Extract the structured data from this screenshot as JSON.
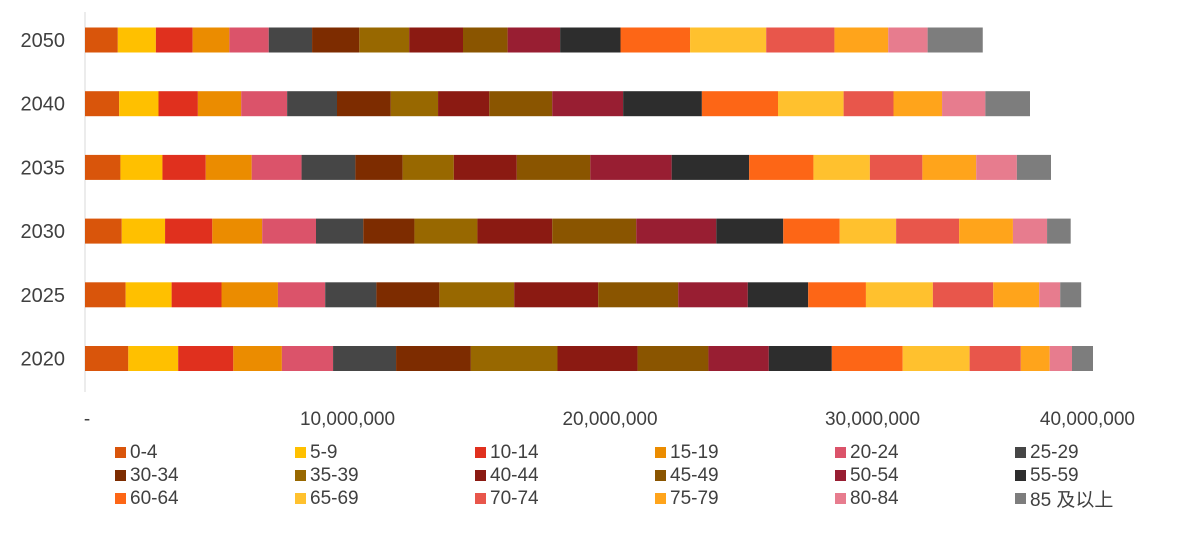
{
  "chart_data": {
    "type": "bar",
    "orientation": "horizontal",
    "stacked": true,
    "categories": [
      "2050",
      "2040",
      "2035",
      "2030",
      "2025",
      "2020"
    ],
    "x_ticks": [
      "-",
      "10,000,000",
      "20,000,000",
      "30,000,000",
      "40,000,000"
    ],
    "xlim": [
      0,
      40000000
    ],
    "grid": false,
    "legend_position": "bottom",
    "series": [
      {
        "name": "0-4",
        "color": "#d9550b",
        "values": [
          1250000,
          1300000,
          1350000,
          1400000,
          1550000,
          1650000
        ]
      },
      {
        "name": "5-9",
        "color": "#ffc000",
        "values": [
          1450000,
          1500000,
          1600000,
          1650000,
          1750000,
          1900000
        ]
      },
      {
        "name": "10-14",
        "color": "#e0301e",
        "values": [
          1400000,
          1500000,
          1650000,
          1800000,
          1900000,
          2100000
        ]
      },
      {
        "name": "15-19",
        "color": "#eb8c00",
        "values": [
          1400000,
          1650000,
          1750000,
          1900000,
          2150000,
          1850000
        ]
      },
      {
        "name": "20-24",
        "color": "#db536a",
        "values": [
          1500000,
          1750000,
          1900000,
          2050000,
          1800000,
          1950000
        ]
      },
      {
        "name": "25-29",
        "color": "#464646",
        "values": [
          1650000,
          1900000,
          2050000,
          1800000,
          1950000,
          2400000
        ]
      },
      {
        "name": "30-34",
        "color": "#7d2c00",
        "values": [
          1800000,
          2050000,
          1800000,
          1950000,
          2400000,
          2850000
        ]
      },
      {
        "name": "35-39",
        "color": "#986800",
        "values": [
          1900000,
          1800000,
          1950000,
          2400000,
          2850000,
          3300000
        ]
      },
      {
        "name": "40-44",
        "color": "#8b1a12",
        "values": [
          2050000,
          1950000,
          2400000,
          2850000,
          3200000,
          3050000
        ]
      },
      {
        "name": "45-49",
        "color": "#8a5500",
        "values": [
          1700000,
          2400000,
          2800000,
          3200000,
          3050000,
          2700000
        ]
      },
      {
        "name": "50-54",
        "color": "#981e32",
        "values": [
          2000000,
          2700000,
          3100000,
          3050000,
          2650000,
          2300000
        ]
      },
      {
        "name": "55-59",
        "color": "#2d2d2d",
        "values": [
          2300000,
          3000000,
          2950000,
          2550000,
          2300000,
          2400000
        ]
      },
      {
        "name": "60-64",
        "color": "#fd6616",
        "values": [
          2650000,
          2900000,
          2450000,
          2150000,
          2200000,
          2700000
        ]
      },
      {
        "name": "65-69",
        "color": "#ffc12e",
        "values": [
          2900000,
          2500000,
          2150000,
          2150000,
          2550000,
          2550000
        ]
      },
      {
        "name": "70-74",
        "color": "#e8564b",
        "values": [
          2600000,
          1900000,
          2000000,
          2400000,
          2300000,
          1950000
        ]
      },
      {
        "name": "75-79",
        "color": "#ffa41b",
        "values": [
          2050000,
          1850000,
          2050000,
          2050000,
          1750000,
          1100000
        ]
      },
      {
        "name": "80-84",
        "color": "#e77c8e",
        "values": [
          1500000,
          1650000,
          1550000,
          1300000,
          800000,
          850000
        ]
      },
      {
        "name": "85 及以上",
        "color": "#7d7d7d",
        "values": [
          2100000,
          1700000,
          1300000,
          900000,
          800000,
          800000
        ]
      }
    ]
  }
}
